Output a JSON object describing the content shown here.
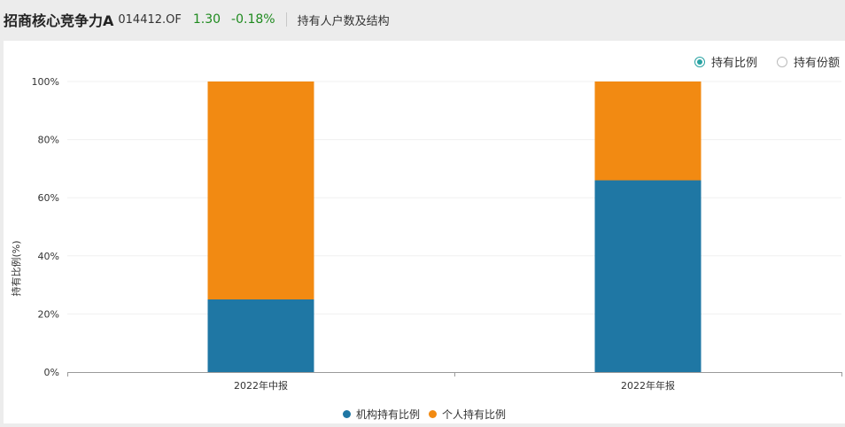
{
  "header": {
    "fund_name": "招商核心竞争力A",
    "fund_code": "014412.OF",
    "nav": "1.30",
    "change_pct": "-0.18%",
    "section_title": "持有人户数及结构"
  },
  "toggle": {
    "options": [
      {
        "label": "持有比例",
        "selected": true
      },
      {
        "label": "持有份额",
        "selected": false
      }
    ],
    "accent_color": "#2aa3a3"
  },
  "colors": {
    "institution": "#1f77a4",
    "individual": "#f28a12",
    "change": "#1e8a1e"
  },
  "chart_data": {
    "type": "bar",
    "stacked": true,
    "categories": [
      "2022年中报",
      "2022年年报"
    ],
    "series": [
      {
        "name": "机构持有比例",
        "values": [
          25,
          66
        ],
        "color": "#1f77a4"
      },
      {
        "name": "个人持有比例",
        "values": [
          75,
          34
        ],
        "color": "#f28a12"
      }
    ],
    "ylabel": "持有比例(%)",
    "ylim": [
      0,
      100
    ],
    "yticks": [
      "0%",
      "20%",
      "40%",
      "60%",
      "80%",
      "100%"
    ],
    "grid": true,
    "legend_position": "bottom"
  }
}
